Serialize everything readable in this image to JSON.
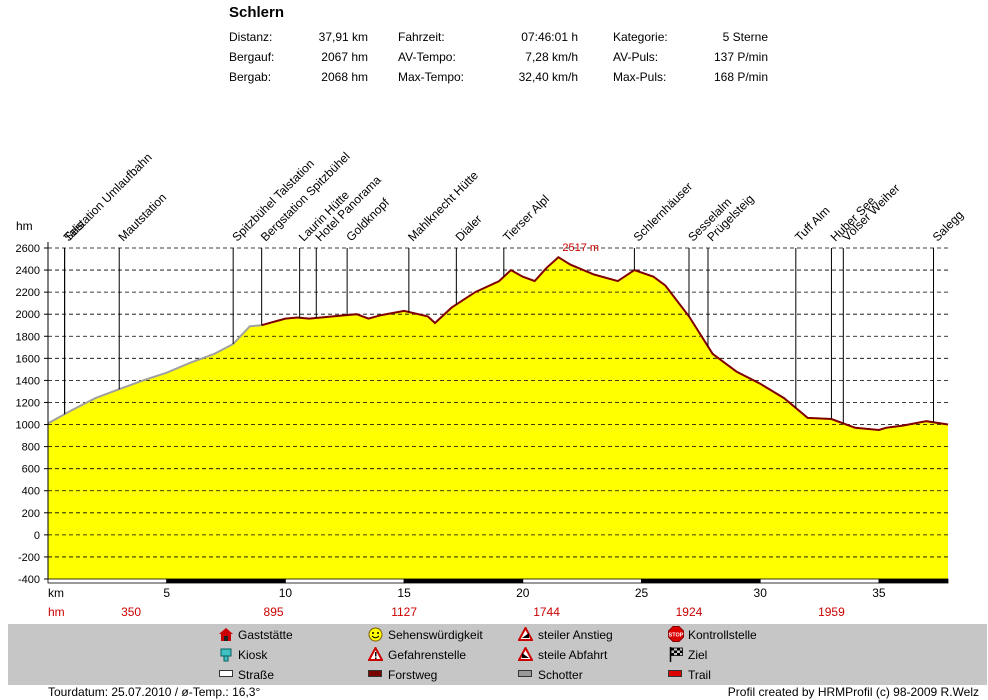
{
  "title": "Schlern",
  "stats": [
    {
      "label": "Distanz:",
      "value": "37,91 km"
    },
    {
      "label": "Bergauf:",
      "value": "2067 hm"
    },
    {
      "label": "Bergab:",
      "value": "2068 hm"
    },
    {
      "label": "Fahrzeit:",
      "value": "07:46:01 h"
    },
    {
      "label": "AV-Tempo:",
      "value": "7,28 km/h"
    },
    {
      "label": "Max-Tempo:",
      "value": "32,40 km/h"
    },
    {
      "label": "Kategorie:",
      "value": "5 Sterne"
    },
    {
      "label": "AV-Puls:",
      "value": "137 P/min"
    },
    {
      "label": "Max-Puls:",
      "value": "168 P/min"
    }
  ],
  "chart_data": {
    "type": "area",
    "xlabel": "km",
    "ylabel": "hm",
    "xlim": [
      0,
      37.91
    ],
    "ylim": [
      -400,
      2600
    ],
    "x_ticks": [
      5,
      10,
      15,
      20,
      25,
      30,
      35
    ],
    "y_ticks": [
      -400,
      -200,
      0,
      200,
      400,
      600,
      800,
      1000,
      1200,
      1400,
      1600,
      1800,
      2000,
      2200,
      2400,
      2600
    ],
    "grid": true,
    "x": [
      0,
      1,
      2,
      3,
      4,
      5,
      6,
      7,
      7.8,
      8.5,
      9,
      9.5,
      10,
      10.5,
      11,
      12,
      13,
      13.5,
      14,
      15,
      16,
      16.3,
      17,
      18,
      19,
      19.5,
      20,
      20.5,
      21,
      21.5,
      22,
      23,
      24,
      24.7,
      25.5,
      26,
      27,
      28,
      29,
      30,
      31,
      32,
      33,
      34,
      35,
      35.3,
      36,
      37,
      37.91
    ],
    "y": [
      1010,
      1130,
      1240,
      1320,
      1400,
      1470,
      1560,
      1640,
      1730,
      1890,
      1900,
      1930,
      1960,
      1970,
      1960,
      1980,
      2000,
      1960,
      1990,
      2030,
      1980,
      1920,
      2060,
      2200,
      2300,
      2400,
      2340,
      2300,
      2420,
      2517,
      2450,
      2360,
      2300,
      2400,
      2340,
      2260,
      1980,
      1640,
      1480,
      1370,
      1240,
      1060,
      1050,
      970,
      950,
      970,
      990,
      1030,
      1000
    ],
    "max_label": "2517 m",
    "max_x": 21.5,
    "waypoints": [
      {
        "name": "Talstation Umlaufbahn",
        "km": 0.7
      },
      {
        "name": "Seis",
        "km": 0.7
      },
      {
        "name": "Mautstation",
        "km": 3.0
      },
      {
        "name": "Spitzbühel Talstation",
        "km": 7.8
      },
      {
        "name": "Bergstation Spitzbühel",
        "km": 9.0
      },
      {
        "name": "Laurin Hütte",
        "km": 10.6
      },
      {
        "name": "Hotel Panorama",
        "km": 11.3
      },
      {
        "name": "Goldknopf",
        "km": 12.6
      },
      {
        "name": "Mahlknecht Hütte",
        "km": 15.2
      },
      {
        "name": "Dialer",
        "km": 17.2
      },
      {
        "name": "Tierser Alpl",
        "km": 19.2
      },
      {
        "name": "Schlernhäuser",
        "km": 24.7
      },
      {
        "name": "Sesselalm",
        "km": 27.0
      },
      {
        "name": "Prügelsteig",
        "km": 27.8
      },
      {
        "name": "Tuff Alm",
        "km": 31.5
      },
      {
        "name": "Huber See",
        "km": 33.0
      },
      {
        "name": "Völser Weiher",
        "km": 33.5
      },
      {
        "name": "Salegg",
        "km": 37.3
      }
    ],
    "hm_row": [
      {
        "km": 3.5,
        "value": "350"
      },
      {
        "km": 9.5,
        "value": "895"
      },
      {
        "km": 15.0,
        "value": "1127"
      },
      {
        "km": 21.0,
        "value": "1744"
      },
      {
        "km": 27.0,
        "value": "1924"
      },
      {
        "km": 33.0,
        "value": "1959"
      }
    ],
    "hm_row_label": "hm",
    "colors": {
      "fill": "#ffff00",
      "line_grey": "#a0a0a0",
      "line_red": "#800000",
      "label_red": "#cc0000"
    }
  },
  "legend": [
    {
      "label": "Gaststätte",
      "icon": "house-icon"
    },
    {
      "label": "Kiosk",
      "icon": "kiosk-icon"
    },
    {
      "label": "Straße",
      "icon": "road-swatch"
    },
    {
      "label": "Sehenswürdigkeit",
      "icon": "smiley-icon"
    },
    {
      "label": "Gefahrenstelle",
      "icon": "warning-icon"
    },
    {
      "label": "Forstweg",
      "icon": "forest-road-swatch"
    },
    {
      "label": "steiler Anstieg",
      "icon": "steep-ascent-icon"
    },
    {
      "label": "steile Abfahrt",
      "icon": "steep-descent-icon"
    },
    {
      "label": "Schotter",
      "icon": "gravel-swatch"
    },
    {
      "label": "Kontrollstelle",
      "icon": "stop-icon"
    },
    {
      "label": "Ziel",
      "icon": "finish-flag-icon"
    },
    {
      "label": "Trail",
      "icon": "trail-swatch"
    }
  ],
  "footer": {
    "left": "Tourdatum: 25.07.2010  /  ø-Temp.: 16,3°",
    "right": "Profil created by HRMProfil (c) 98-2009 R.Welz"
  }
}
